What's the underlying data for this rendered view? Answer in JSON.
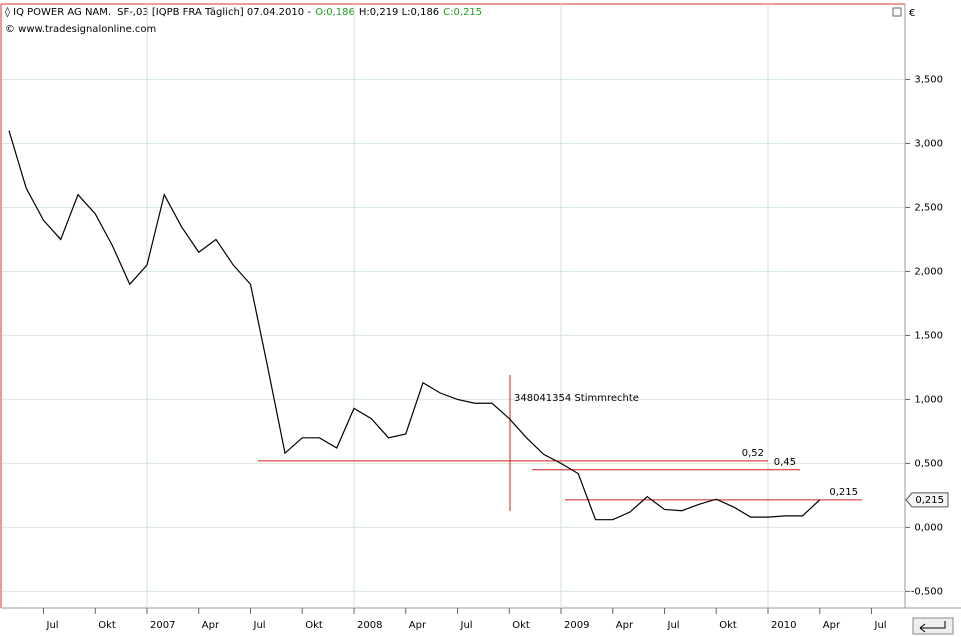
{
  "header": {
    "name": "IQ POWER AG NAM.",
    "info": "SF-,03 [IQPB FRA  Täglich] 07.04.2010 -",
    "open": "O:0,186",
    "high_low": "H:0,219 L:0,186",
    "close": "C:0,215",
    "source": "© www.tradesignalonline.com",
    "currency": "€"
  },
  "chart_data": {
    "type": "line",
    "color": "#000000",
    "categories": [
      null,
      null,
      "Jul",
      null,
      null,
      "Okt",
      null,
      null,
      "2007",
      null,
      null,
      "Apr",
      null,
      null,
      "Jul",
      null,
      null,
      "Okt",
      null,
      null,
      "2008",
      null,
      null,
      "Apr",
      null,
      null,
      "Jul",
      null,
      null,
      "Okt",
      null,
      null,
      "2009",
      null,
      null,
      "Apr",
      null,
      null,
      "Jul",
      null,
      null,
      "Okt",
      null,
      null,
      "2010",
      null,
      null,
      "Apr",
      null,
      null,
      "Jul",
      null
    ],
    "values": [
      3.1,
      2.65,
      2.4,
      2.25,
      2.6,
      2.45,
      2.2,
      1.9,
      2.05,
      2.6,
      2.35,
      2.15,
      2.25,
      2.05,
      1.9,
      1.25,
      0.58,
      0.7,
      0.7,
      0.62,
      0.93,
      0.85,
      0.7,
      0.73,
      1.13,
      1.05,
      1.0,
      0.97,
      0.97,
      0.85,
      0.7,
      0.57,
      0.5,
      0.42,
      0.06,
      0.06,
      0.12,
      0.24,
      0.14,
      0.13,
      0.18,
      0.22,
      0.16,
      0.08,
      0.08,
      0.09,
      0.09,
      0.215,
      null,
      null,
      null,
      null
    ],
    "ylim": [
      -0.63,
      4.09
    ],
    "yticks": [
      {
        "value": -0.5,
        "label": "-0,500"
      },
      {
        "value": 0,
        "label": "0,000"
      },
      {
        "value": 0.5,
        "label": "0,500"
      },
      {
        "value": 1,
        "label": "1,000"
      },
      {
        "value": 1.5,
        "label": "1,500"
      },
      {
        "value": 2,
        "label": "2,000"
      },
      {
        "value": 2.5,
        "label": "2,500"
      },
      {
        "value": 3,
        "label": "3,000"
      },
      {
        "value": 3.5,
        "label": "3,500"
      }
    ],
    "annotations": [
      {
        "value": 0.52,
        "label": "0,52",
        "label_color": "#2a2a8a"
      },
      {
        "value": 0.45,
        "label": "0,45",
        "label_color": "#2a2a8a"
      },
      {
        "value": 0.215,
        "label": "0,215",
        "label_color": "#cc0000"
      }
    ],
    "event_label": "348041354 Stimmrechte"
  }
}
